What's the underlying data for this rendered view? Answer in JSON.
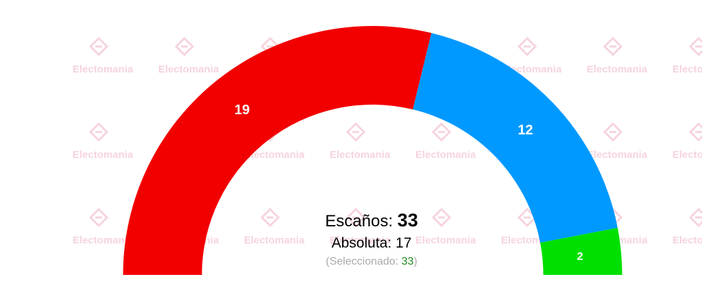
{
  "chart_data": {
    "type": "pie",
    "subtype": "semicircle-parliament",
    "total_seats": 33,
    "series": [
      {
        "value": 19,
        "color": "#f20000"
      },
      {
        "value": 12,
        "color": "#0099ff"
      },
      {
        "value": 2,
        "color": "#00e000"
      }
    ]
  },
  "summary": {
    "seats_label": "Escaños:",
    "seats_value": "33",
    "majority_label": "Absoluta:",
    "majority_value": "17",
    "selected_open": "(Seleccionado:",
    "selected_value": "33",
    "selected_close": ")"
  },
  "watermark": {
    "text": "Electomania",
    "color": "#f6d4dd"
  }
}
